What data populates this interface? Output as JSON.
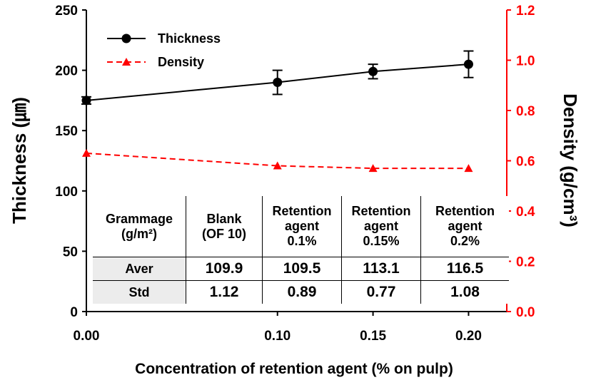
{
  "chart_data": {
    "type": "line",
    "x": [
      0.0,
      0.1,
      0.15,
      0.2
    ],
    "xticks": [
      "0.00",
      "0.10",
      "0.15",
      "0.20"
    ],
    "xlim": [
      0.0,
      0.22
    ],
    "xlabel": "Concentration of retention agent (% on pulp)",
    "ylabel_left": "Thickness (㎛)",
    "ylabel_right": "Density (g/cm³)",
    "ylim_left": [
      0,
      250
    ],
    "yticks_left": [
      "0",
      "50",
      "100",
      "150",
      "200",
      "250"
    ],
    "ylim_right": [
      0.0,
      1.2
    ],
    "yticks_right": [
      "0.0",
      "0.2",
      "0.4",
      "0.6",
      "0.8",
      "1.0",
      "1.2"
    ],
    "series": [
      {
        "name": "Thickness",
        "axis": "left",
        "color": "#000000",
        "marker": "circle",
        "line": "solid",
        "values": [
          175,
          190,
          199,
          205
        ],
        "errors": [
          3,
          10,
          6,
          11
        ]
      },
      {
        "name": "Density",
        "axis": "right",
        "color": "#ff0000",
        "marker": "triangle",
        "line": "dashed",
        "values": [
          0.63,
          0.58,
          0.57,
          0.57
        ]
      }
    ],
    "legend": "top-left",
    "grid": false
  },
  "table": {
    "header": [
      "Grammage\n(g/m²)",
      "Blank\n(OF 10)",
      "Retention\nagent\n0.1%",
      "Retention\nagent\n0.15%",
      "Retention\nagent\n0.2%"
    ],
    "rows": [
      {
        "label": "Aver",
        "values": [
          "109.9",
          "109.5",
          "113.1",
          "116.5"
        ]
      },
      {
        "label": "Std",
        "values": [
          "1.12",
          "0.89",
          "0.77",
          "1.08"
        ]
      }
    ]
  }
}
